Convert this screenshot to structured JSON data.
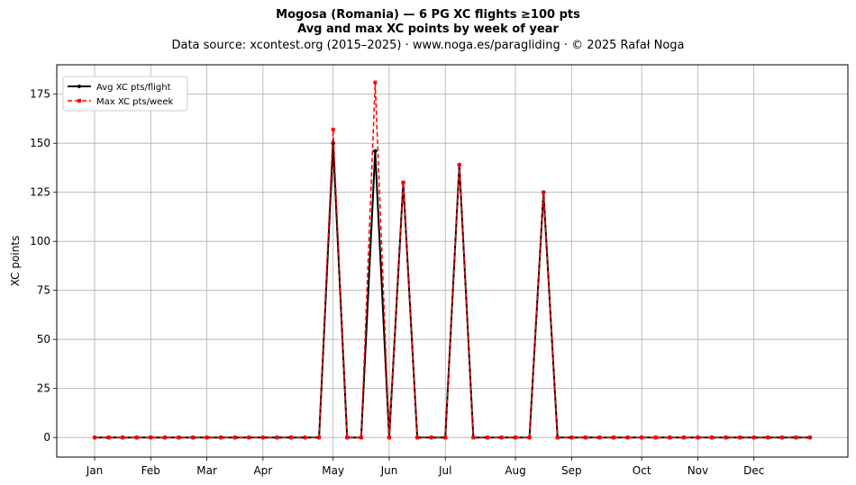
{
  "chart_data": {
    "type": "line",
    "title": "Mogosa (Romania)  —  6 PG XC flights ≥100 pts",
    "subtitle": "Avg and max XC points by week of year",
    "source_note": "Data source: xcontest.org (2015–2025)  ·  www.noga.es/paragliding  ·  © 2025 Rafał Noga",
    "xlabel": "",
    "ylabel": "XC points",
    "ylim": [
      -10,
      190
    ],
    "yticks": [
      0,
      25,
      50,
      75,
      100,
      125,
      150,
      175
    ],
    "grid": true,
    "legend_position": "upper-left",
    "x_weeks": [
      1,
      2,
      3,
      4,
      5,
      6,
      7,
      8,
      9,
      10,
      11,
      12,
      13,
      14,
      15,
      16,
      17,
      18,
      19,
      20,
      21,
      22,
      23,
      24,
      25,
      26,
      27,
      28,
      29,
      30,
      31,
      32,
      33,
      34,
      35,
      36,
      37,
      38,
      39,
      40,
      41,
      42,
      43,
      44,
      45,
      46,
      47,
      48,
      49,
      50,
      51,
      52
    ],
    "month_ticks": [
      {
        "label": "Jan",
        "week": 1
      },
      {
        "label": "Feb",
        "week": 5
      },
      {
        "label": "Mar",
        "week": 9
      },
      {
        "label": "Apr",
        "week": 13
      },
      {
        "label": "May",
        "week": 18
      },
      {
        "label": "Jun",
        "week": 22
      },
      {
        "label": "Jul",
        "week": 26
      },
      {
        "label": "Aug",
        "week": 31
      },
      {
        "label": "Sep",
        "week": 35
      },
      {
        "label": "Oct",
        "week": 40
      },
      {
        "label": "Nov",
        "week": 44
      },
      {
        "label": "Dec",
        "week": 48
      }
    ],
    "series": [
      {
        "name": "Avg XC pts/flight",
        "color": "#000000",
        "values": [
          0,
          0,
          0,
          0,
          0,
          0,
          0,
          0,
          0,
          0,
          0,
          0,
          0,
          0,
          0,
          0,
          0,
          150,
          0,
          0,
          146,
          0,
          130,
          0,
          0,
          0,
          139,
          0,
          0,
          0,
          0,
          0,
          125,
          0,
          0,
          0,
          0,
          0,
          0,
          0,
          0,
          0,
          0,
          0,
          0,
          0,
          0,
          0,
          0,
          0,
          0,
          0
        ]
      },
      {
        "name": "Max XC pts/week",
        "color": "#ff0000",
        "values": [
          0,
          0,
          0,
          0,
          0,
          0,
          0,
          0,
          0,
          0,
          0,
          0,
          0,
          0,
          0,
          0,
          0,
          157,
          0,
          0,
          181,
          0,
          130,
          0,
          0,
          0,
          139,
          0,
          0,
          0,
          0,
          0,
          125,
          0,
          0,
          0,
          0,
          0,
          0,
          0,
          0,
          0,
          0,
          0,
          0,
          0,
          0,
          0,
          0,
          0,
          0,
          0
        ]
      }
    ]
  }
}
